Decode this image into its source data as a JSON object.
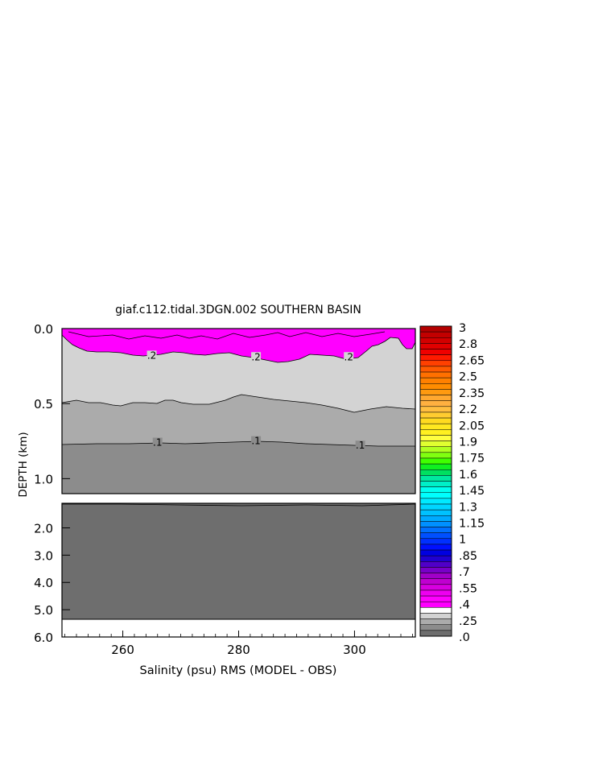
{
  "chart_data": {
    "type": "heatmap",
    "title": "giaf.c112.tidal.3DGN.002 SOUTHERN BASIN",
    "xlabel": "Salinity (psu) RMS (MODEL - OBS)",
    "ylabel": "DEPTH (km)",
    "x_ticks": [
      "260",
      "280",
      "300"
    ],
    "x_tick_values": [
      260,
      280,
      300
    ],
    "xlim": [
      249.5,
      310.5
    ],
    "upper_panel": {
      "ylim": [
        0.0,
        1.1
      ],
      "y_ticks": [
        "0.0",
        "0.5",
        "1.0"
      ],
      "y_tick_values": [
        0.0,
        0.5,
        1.0
      ]
    },
    "lower_panel": {
      "ylim": [
        1.1,
        6.0
      ],
      "y_ticks": [
        "2.0",
        "3.0",
        "4.0",
        "5.0",
        "6.0"
      ],
      "y_tick_values": [
        2.0,
        3.0,
        4.0,
        5.0,
        6.0
      ]
    },
    "contour_labels": [
      {
        "text": ".2",
        "x": 265,
        "depth": 0.19
      },
      {
        "text": ".2",
        "x": 283,
        "depth": 0.2
      },
      {
        "text": ".2",
        "x": 299,
        "depth": 0.2
      },
      {
        "text": ".1",
        "x": 266,
        "depth": 0.77
      },
      {
        "text": ".1",
        "x": 283,
        "depth": 0.76
      },
      {
        "text": ".1",
        "x": 301,
        "depth": 0.79
      }
    ],
    "colorbar": {
      "labels": [
        "3",
        "2.8",
        "2.65",
        "2.5",
        "2.35",
        "2.2",
        "2.05",
        "1.9",
        "1.75",
        "1.6",
        "1.45",
        "1.3",
        "1.15",
        "1",
        ".85",
        ".7",
        ".55",
        ".4",
        ".25",
        ".0"
      ],
      "bands": [
        {
          "color": "#b30000"
        },
        {
          "color": "#c20000"
        },
        {
          "color": "#d20000"
        },
        {
          "color": "#e10000"
        },
        {
          "color": "#f00000"
        },
        {
          "color": "#ff1a00"
        },
        {
          "color": "#ff4000"
        },
        {
          "color": "#ff5a00"
        },
        {
          "color": "#ff7000"
        },
        {
          "color": "#ff8000"
        },
        {
          "color": "#ff8c00"
        },
        {
          "color": "#ff9a10"
        },
        {
          "color": "#ffa830"
        },
        {
          "color": "#ffb040"
        },
        {
          "color": "#ffbe40"
        },
        {
          "color": "#ffcc30"
        },
        {
          "color": "#ffda20"
        },
        {
          "color": "#ffe820"
        },
        {
          "color": "#fff020"
        },
        {
          "color": "#ffff40"
        },
        {
          "color": "#e0ff30"
        },
        {
          "color": "#b0ff20"
        },
        {
          "color": "#80ff10"
        },
        {
          "color": "#40ff00"
        },
        {
          "color": "#10f020"
        },
        {
          "color": "#00e060"
        },
        {
          "color": "#00e8a0"
        },
        {
          "color": "#00f0c8"
        },
        {
          "color": "#00fff0"
        },
        {
          "color": "#00ffff"
        },
        {
          "color": "#00eaff"
        },
        {
          "color": "#00d6ff"
        },
        {
          "color": "#00c2ff"
        },
        {
          "color": "#00aaff"
        },
        {
          "color": "#0090ff"
        },
        {
          "color": "#0070ff"
        },
        {
          "color": "#0050ff"
        },
        {
          "color": "#0030ff"
        },
        {
          "color": "#0010ff"
        },
        {
          "color": "#0000e0"
        },
        {
          "color": "#2000d0"
        },
        {
          "color": "#5000c8"
        },
        {
          "color": "#7800c8"
        },
        {
          "color": "#a000c8"
        },
        {
          "color": "#c000d0"
        },
        {
          "color": "#d800e0"
        },
        {
          "color": "#ee00f0"
        },
        {
          "color": "#ff00ff"
        },
        {
          "color": "#ff00ff"
        },
        {
          "color": "#ffffff"
        },
        {
          "color": "#d3d3d3"
        },
        {
          "color": "#ababab"
        },
        {
          "color": "#8c8c8c"
        },
        {
          "color": "#6e6e6e"
        }
      ]
    },
    "region_colors": {
      "magenta": "#ff00ff",
      "light_gray": "#d3d3d3",
      "mid_gray": "#ababab",
      "gray": "#8c8c8c",
      "dark_gray": "#6e6e6e",
      "missing": "#ffffff"
    },
    "bottom_depth": 5.35
  }
}
